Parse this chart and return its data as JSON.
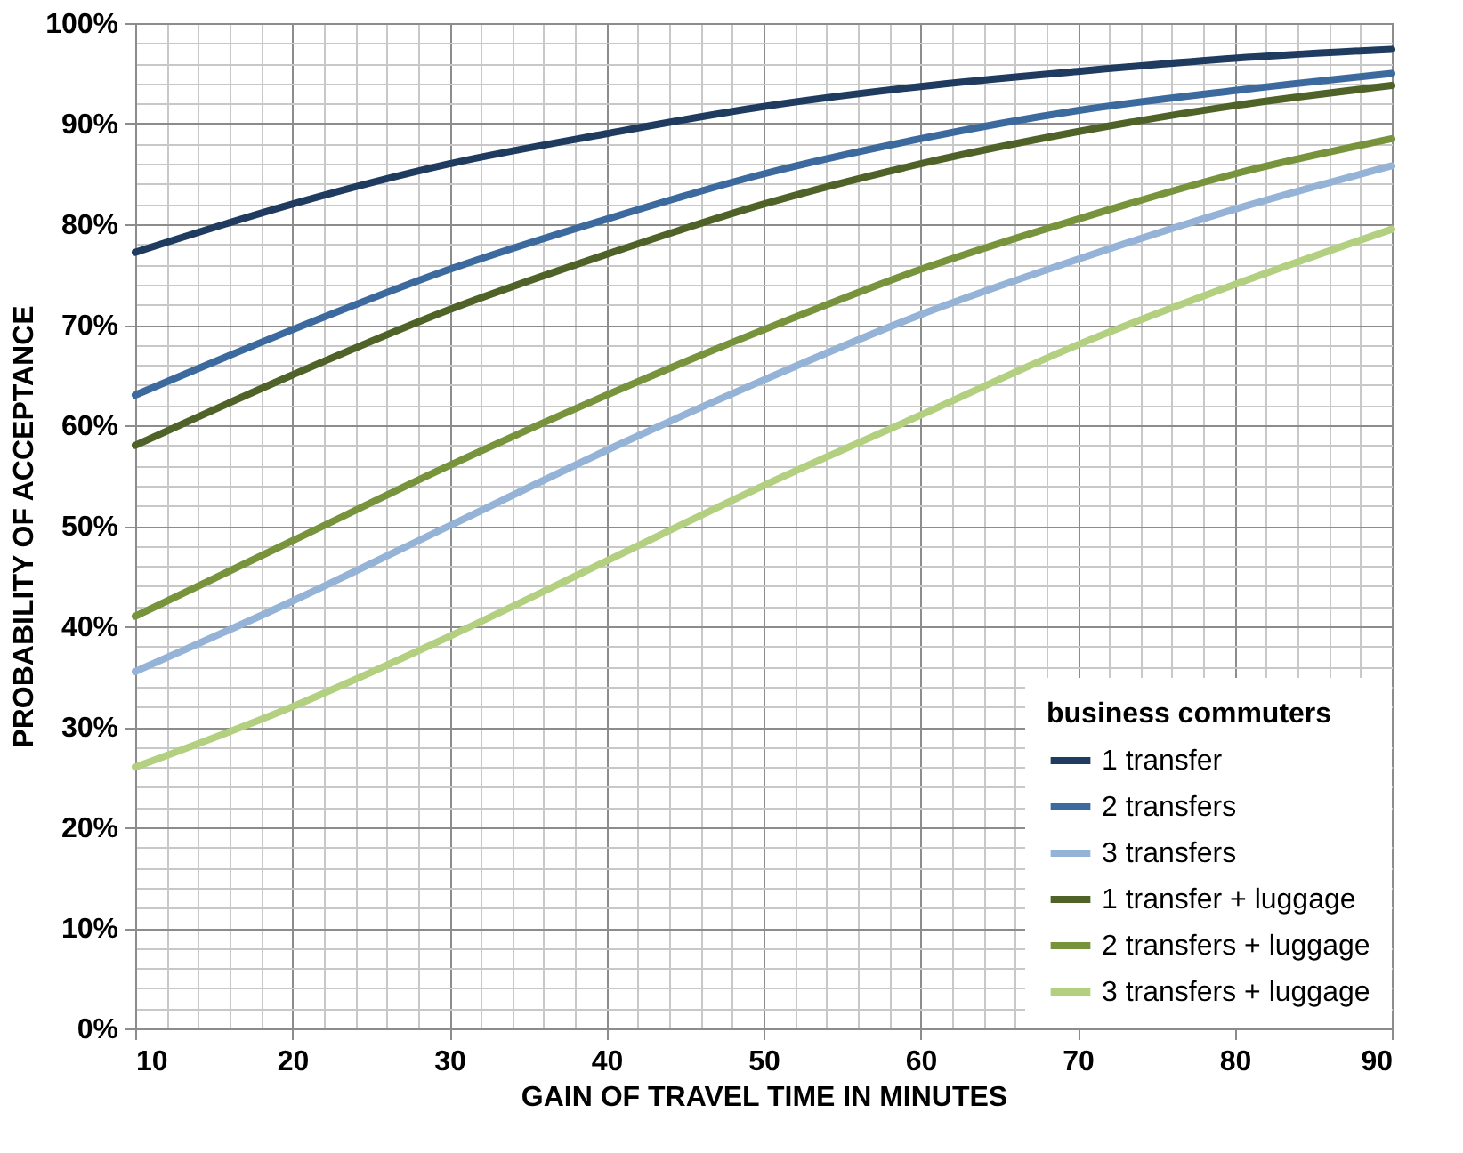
{
  "chart_data": {
    "type": "line",
    "xlabel": "GAIN OF TRAVEL TIME IN MINUTES",
    "ylabel": "PROBABILITY OF ACCEPTANCE",
    "legend_title": "business commuters",
    "x": [
      10,
      20,
      30,
      40,
      50,
      60,
      70,
      80,
      90
    ],
    "series": [
      {
        "name": "1 transfer",
        "color": "#1f3b5f",
        "values": [
          77.2,
          82,
          86,
          89,
          91.7,
          93.7,
          95.2,
          96.5,
          97.4
        ]
      },
      {
        "name": "2 transfers",
        "color": "#3d6a9e",
        "values": [
          63,
          69.5,
          75.5,
          80.5,
          85,
          88.5,
          91.3,
          93.3,
          95
        ]
      },
      {
        "name": "3 transfers",
        "color": "#95b3d7",
        "values": [
          35.5,
          42.5,
          50,
          57.5,
          64.5,
          71,
          76.5,
          81.5,
          85.8
        ]
      },
      {
        "name": "1 transfer + luggage",
        "color": "#4f6228",
        "values": [
          58,
          65,
          71.5,
          77,
          82,
          86,
          89.2,
          91.8,
          93.8
        ]
      },
      {
        "name": "2 transfers + luggage",
        "color": "#77933c",
        "values": [
          41,
          48.5,
          56,
          63,
          69.5,
          75.5,
          80.5,
          85,
          88.5
        ]
      },
      {
        "name": "3 transfers + luggage",
        "color": "#b3cf80",
        "values": [
          26,
          32,
          39,
          46.5,
          54,
          61,
          68,
          74,
          79.5
        ]
      }
    ],
    "xlim": [
      10,
      90
    ],
    "xticks": [
      10,
      {
        "value": 12,
        "label": null
      },
      {
        "value": 14,
        "label": null
      },
      {
        "value": 16,
        "label": null
      },
      {
        "value": 18,
        "label": null
      },
      20,
      {
        "value": 22,
        "label": null
      },
      {
        "value": 24,
        "label": null
      },
      {
        "value": 26,
        "label": null
      },
      {
        "value": 28,
        "label": null
      },
      30,
      {
        "value": 32,
        "label": null
      },
      {
        "value": 34,
        "label": null
      },
      {
        "value": 36,
        "label": null
      },
      {
        "value": 38,
        "label": null
      },
      40,
      {
        "value": 42,
        "label": null
      },
      {
        "value": 44,
        "label": null
      },
      {
        "value": 46,
        "label": null
      },
      {
        "value": 48,
        "label": null
      },
      50,
      {
        "value": 52,
        "label": null
      },
      {
        "value": 54,
        "label": null
      },
      {
        "value": 56,
        "label": null
      },
      {
        "value": 58,
        "label": null
      },
      60,
      {
        "value": 62,
        "label": null
      },
      {
        "value": 64,
        "label": null
      },
      {
        "value": 66,
        "label": null
      },
      {
        "value": 68,
        "label": null
      },
      70,
      {
        "value": 72,
        "label": null
      },
      {
        "value": 74,
        "label": null
      },
      {
        "value": 76,
        "label": null
      },
      {
        "value": 78,
        "label": null
      },
      80,
      {
        "value": 82,
        "label": null
      },
      {
        "value": 84,
        "label": null
      },
      {
        "value": 86,
        "label": null
      },
      {
        "value": 88,
        "label": null
      },
      90
    ],
    "ylim": [
      0,
      100
    ],
    "yticks": [
      {
        "value": 0,
        "label": "0%"
      },
      {
        "value": 2,
        "label": null
      },
      {
        "value": 4,
        "label": null
      },
      {
        "value": 6,
        "label": null
      },
      {
        "value": 8,
        "label": null
      },
      {
        "value": 10,
        "label": "10%"
      },
      {
        "value": 12,
        "label": null
      },
      {
        "value": 14,
        "label": null
      },
      {
        "value": 16,
        "label": null
      },
      {
        "value": 18,
        "label": null
      },
      {
        "value": 20,
        "label": "20%"
      },
      {
        "value": 22,
        "label": null
      },
      {
        "value": 24,
        "label": null
      },
      {
        "value": 26,
        "label": null
      },
      {
        "value": 28,
        "label": null
      },
      {
        "value": 30,
        "label": "30%"
      },
      {
        "value": 32,
        "label": null
      },
      {
        "value": 34,
        "label": null
      },
      {
        "value": 36,
        "label": null
      },
      {
        "value": 38,
        "label": null
      },
      {
        "value": 40,
        "label": "40%"
      },
      {
        "value": 42,
        "label": null
      },
      {
        "value": 44,
        "label": null
      },
      {
        "value": 46,
        "label": null
      },
      {
        "value": 48,
        "label": null
      },
      {
        "value": 50,
        "label": "50%"
      },
      {
        "value": 52,
        "label": null
      },
      {
        "value": 54,
        "label": null
      },
      {
        "value": 56,
        "label": null
      },
      {
        "value": 58,
        "label": null
      },
      {
        "value": 60,
        "label": "60%"
      },
      {
        "value": 62,
        "label": null
      },
      {
        "value": 64,
        "label": null
      },
      {
        "value": 66,
        "label": null
      },
      {
        "value": 68,
        "label": null
      },
      {
        "value": 70,
        "label": "70%"
      },
      {
        "value": 72,
        "label": null
      },
      {
        "value": 74,
        "label": null
      },
      {
        "value": 76,
        "label": null
      },
      {
        "value": 78,
        "label": null
      },
      {
        "value": 80,
        "label": "80%"
      },
      {
        "value": 82,
        "label": null
      },
      {
        "value": 84,
        "label": null
      },
      {
        "value": 86,
        "label": null
      },
      {
        "value": 88,
        "label": null
      },
      {
        "value": 90,
        "label": "90%"
      },
      {
        "value": 92,
        "label": null
      },
      {
        "value": 94,
        "label": null
      },
      {
        "value": 96,
        "label": null
      },
      {
        "value": 98,
        "label": null
      },
      {
        "value": 100,
        "label": "100%"
      }
    ],
    "grid": true,
    "legend": "bottom right",
    "line_style": "solid",
    "marker": "none"
  }
}
